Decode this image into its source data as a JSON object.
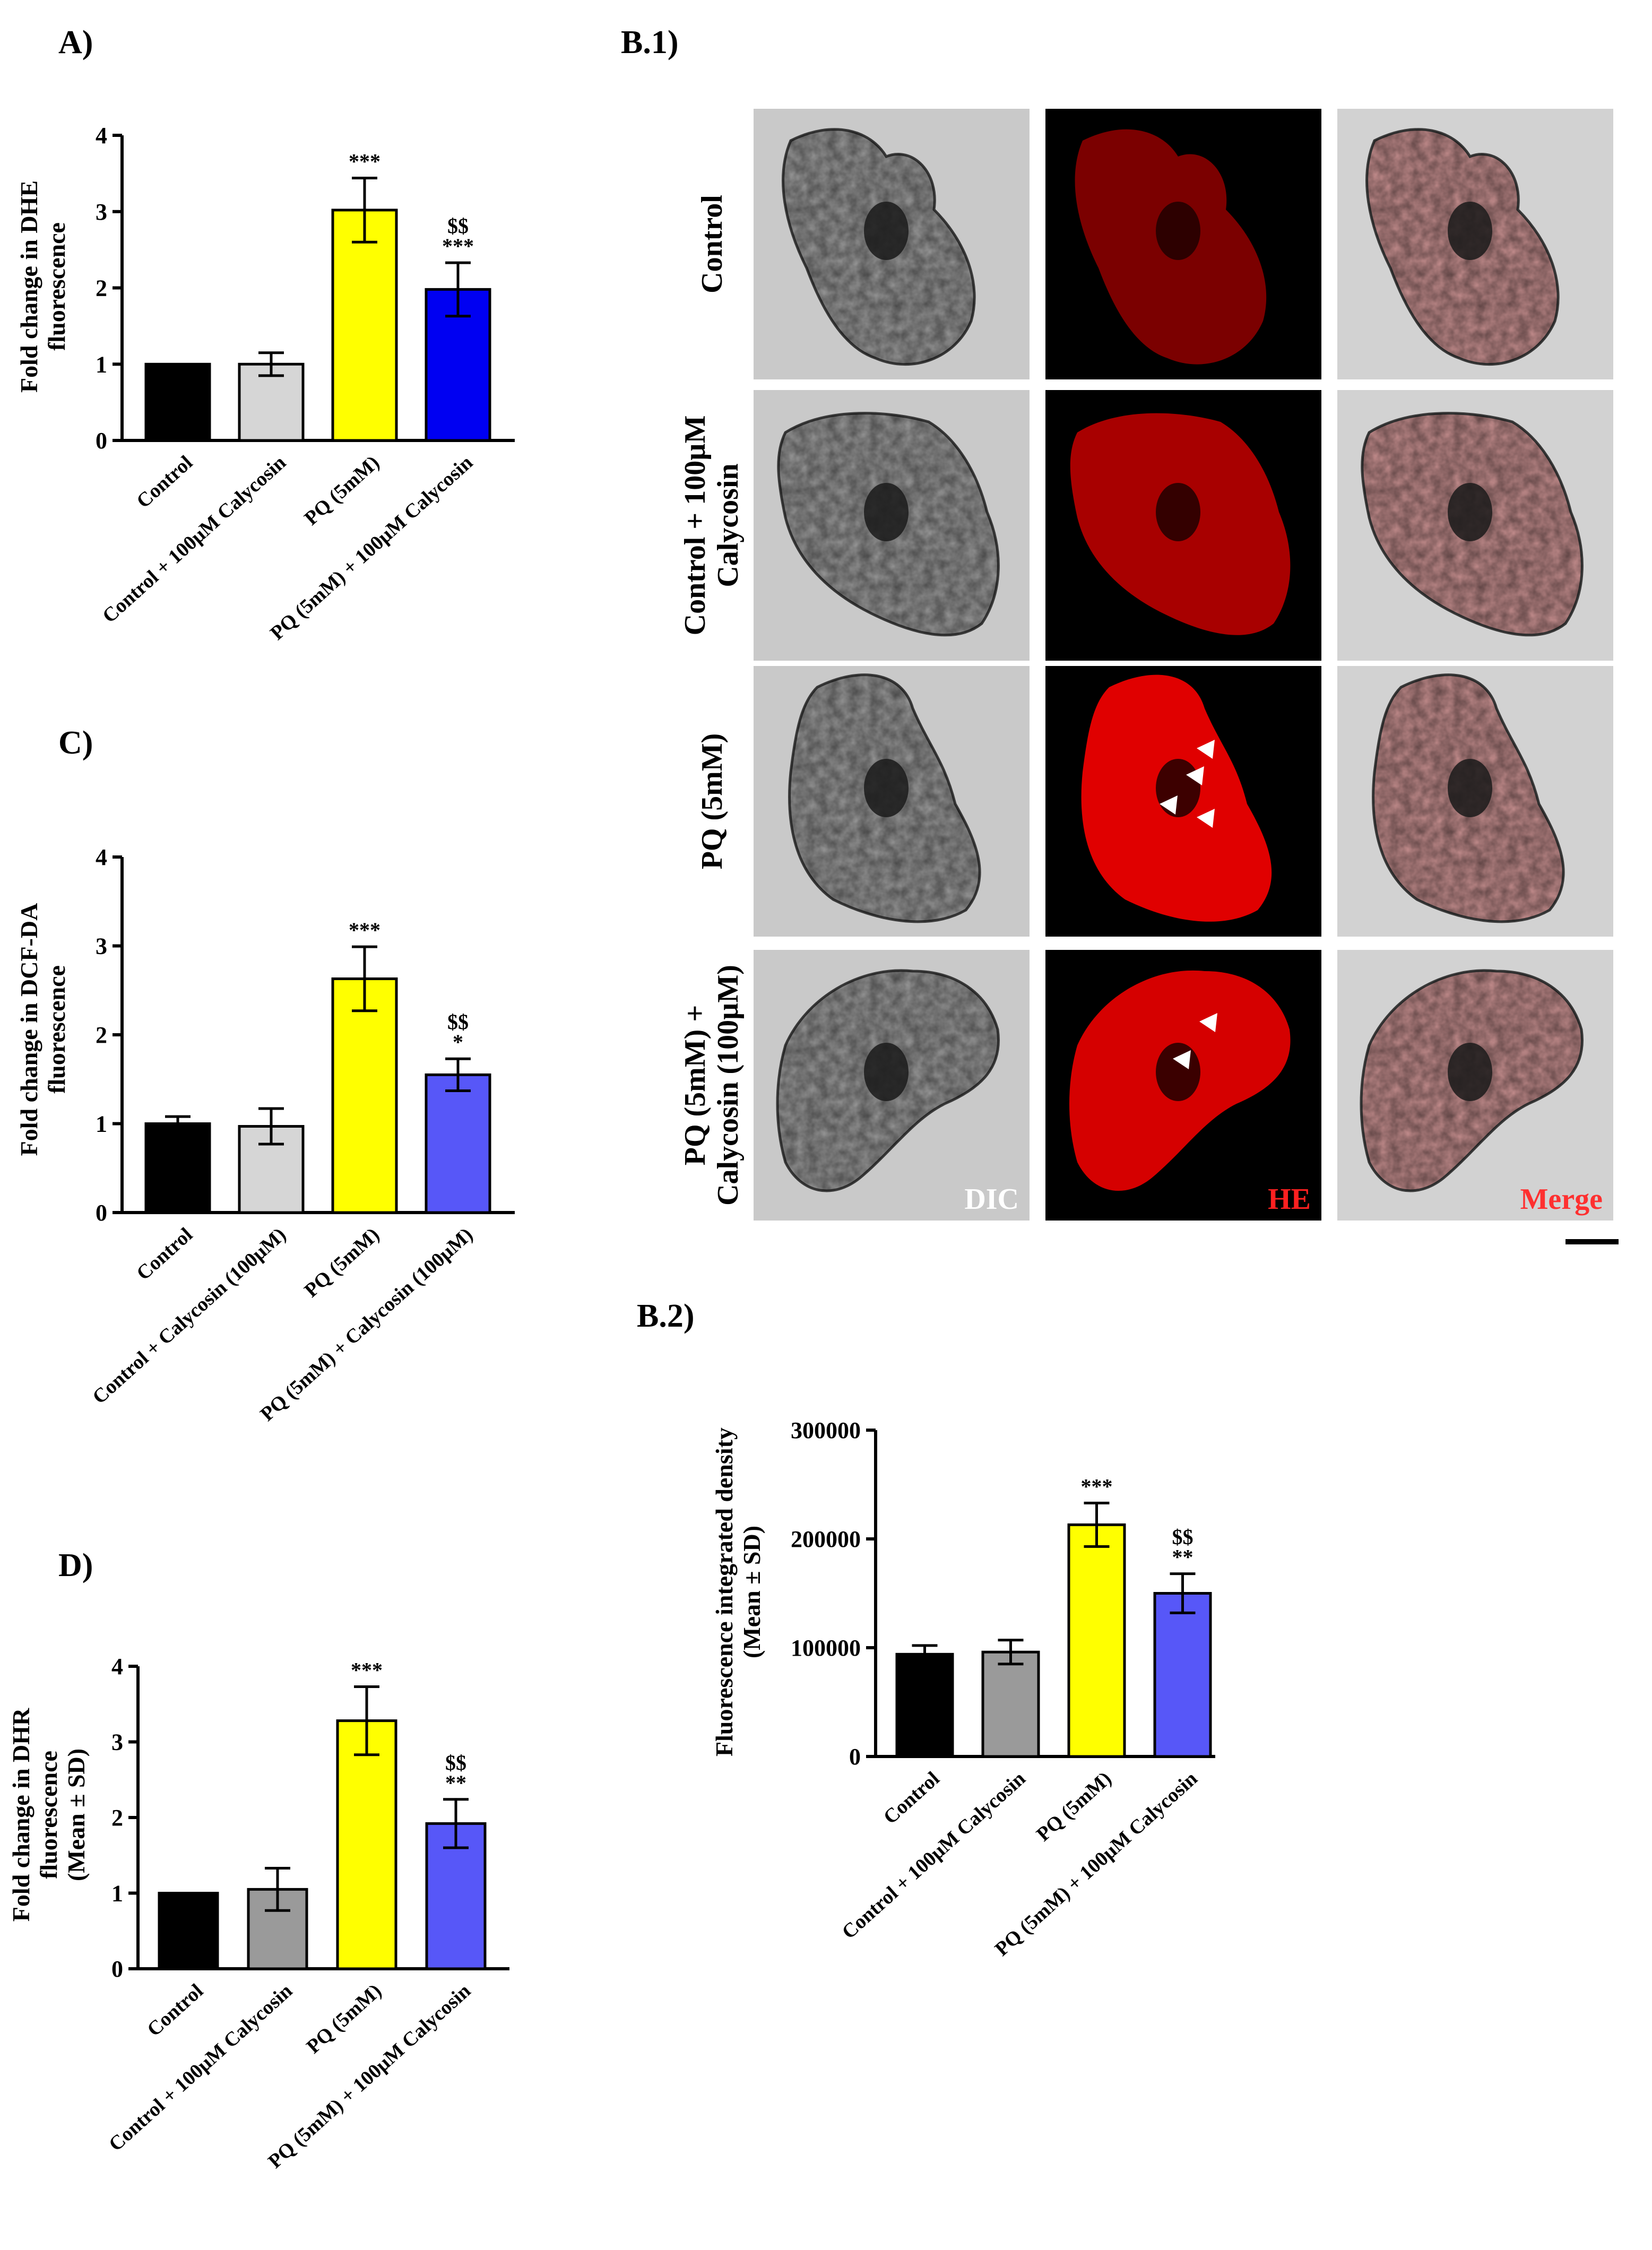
{
  "chart_data": [
    {
      "id": "A",
      "panel_label": "A)",
      "type": "bar",
      "ylabel": [
        "Fold change in DHE",
        "fluorescence"
      ],
      "categories": [
        "Control",
        "Control + 100µM Calycosin",
        "PQ (5mM)",
        "PQ (5mM) + 100µM Calycosin"
      ],
      "values": [
        1.0,
        1.0,
        3.02,
        1.98
      ],
      "errors": [
        0.0,
        0.15,
        0.42,
        0.35
      ],
      "significance": [
        [],
        [],
        [
          "***"
        ],
        [
          "$$",
          "***"
        ]
      ],
      "colors": [
        "#000000",
        "#d6d6d6",
        "#ffff00",
        "#0000f2"
      ],
      "ylim": [
        0,
        4
      ],
      "yticks": [
        0,
        1,
        2,
        3,
        4
      ]
    },
    {
      "id": "C",
      "panel_label": "C)",
      "type": "bar",
      "ylabel": [
        "Fold change in DCF-DA",
        "fluorescence"
      ],
      "categories": [
        "Control",
        "Control + Calycosin (100µM)",
        "PQ (5mM)",
        "PQ (5mM) + Calycosin (100µM)"
      ],
      "values": [
        1.0,
        0.97,
        2.63,
        1.55
      ],
      "errors": [
        0.08,
        0.2,
        0.36,
        0.18
      ],
      "significance": [
        [],
        [],
        [
          "***"
        ],
        [
          "$$",
          "*"
        ]
      ],
      "colors": [
        "#000000",
        "#d6d6d6",
        "#ffff00",
        "#5757f8"
      ],
      "ylim": [
        0,
        4
      ],
      "yticks": [
        0,
        1,
        2,
        3,
        4
      ]
    },
    {
      "id": "D",
      "panel_label": "D)",
      "type": "bar",
      "ylabel": [
        "Fold change in DHR",
        "fluorescence",
        "(Mean ± SD)"
      ],
      "categories": [
        "Control",
        "Control + 100µM Calycosin",
        "PQ (5mM)",
        "PQ (5mM) + 100µM Calycosin"
      ],
      "values": [
        1.0,
        1.05,
        3.28,
        1.92
      ],
      "errors": [
        0.0,
        0.28,
        0.45,
        0.32
      ],
      "significance": [
        [],
        [],
        [
          "***"
        ],
        [
          "$$",
          "**"
        ]
      ],
      "colors": [
        "#000000",
        "#9a9a9a",
        "#ffff00",
        "#5757f8"
      ],
      "ylim": [
        0,
        4
      ],
      "yticks": [
        0,
        1,
        2,
        3,
        4
      ]
    },
    {
      "id": "B2",
      "panel_label": "B.2)",
      "type": "bar",
      "ylabel": [
        "Fluorescence integrated density",
        "(Mean ± SD)"
      ],
      "categories": [
        "Control",
        "Control + 100µM Calycosin",
        "PQ (5mM)",
        "PQ (5mM) + 100µM Calycosin"
      ],
      "values": [
        94000,
        96000,
        213000,
        150000
      ],
      "errors": [
        8000,
        11000,
        20000,
        18000
      ],
      "significance": [
        [],
        [],
        [
          "***"
        ],
        [
          "$$",
          "**"
        ]
      ],
      "colors": [
        "#000000",
        "#9a9a9a",
        "#ffff00",
        "#5757f8"
      ],
      "ylim": [
        0,
        300000
      ],
      "yticks": [
        0,
        100000,
        200000,
        300000
      ]
    }
  ],
  "micrograph": {
    "panel_label": "B.1)",
    "rows": [
      [
        "Control"
      ],
      [
        "Control  + 100µM",
        "Calycosin"
      ],
      [
        "PQ (5mM)"
      ],
      [
        "PQ (5mM) +",
        "Calycosin (100µM)"
      ]
    ],
    "columns": [
      "DIC",
      "HE",
      "Merge"
    ],
    "colors": {
      "dic_bg": "#c9c9c9",
      "he_bg": "#000000",
      "he_signal": "#e00000",
      "merge_bg": "#d2d2d2"
    }
  }
}
